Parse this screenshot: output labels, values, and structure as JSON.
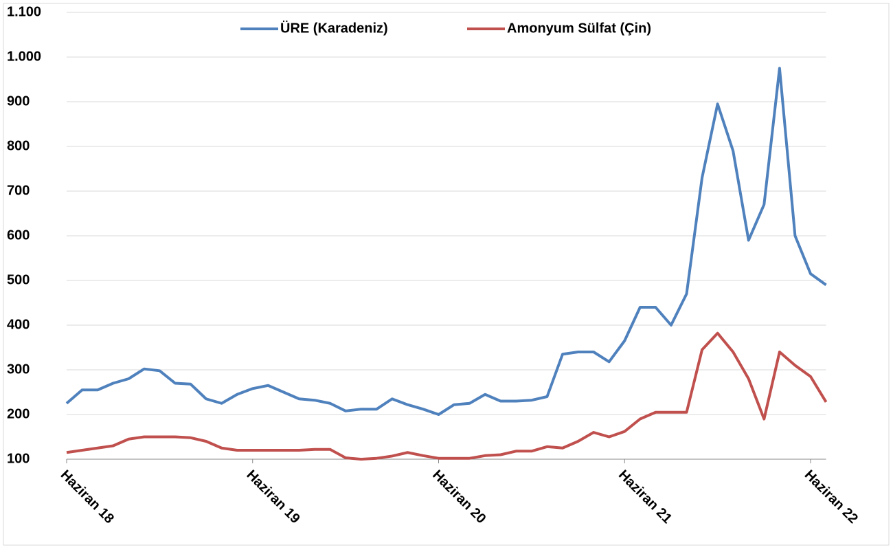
{
  "chart_data": {
    "type": "line",
    "categories": [
      "Haziran 18",
      null,
      null,
      null,
      null,
      null,
      null,
      null,
      null,
      null,
      null,
      null,
      "Haziran 19",
      null,
      null,
      null,
      null,
      null,
      null,
      null,
      null,
      null,
      null,
      null,
      "Haziran 20",
      null,
      null,
      null,
      null,
      null,
      null,
      null,
      null,
      null,
      null,
      null,
      "Haziran 21",
      null,
      null,
      null,
      null,
      null,
      null,
      null,
      null,
      null,
      null,
      null,
      "Haziran 22",
      null
    ],
    "series": [
      {
        "name": "ÜRE (Karadeniz)",
        "color": "#4f81bd",
        "values": [
          225,
          255,
          255,
          270,
          280,
          302,
          298,
          270,
          268,
          235,
          225,
          245,
          258,
          265,
          250,
          235,
          232,
          225,
          208,
          212,
          212,
          235,
          222,
          212,
          200,
          222,
          225,
          245,
          230,
          230,
          232,
          240,
          335,
          340,
          340,
          318,
          365,
          440,
          440,
          400,
          470,
          730,
          895,
          790,
          590,
          670,
          975,
          600,
          515,
          490
        ]
      },
      {
        "name": "Amonyum Sülfat (Çin)",
        "color": "#c0504d",
        "values": [
          115,
          120,
          125,
          130,
          145,
          150,
          150,
          150,
          148,
          140,
          125,
          120,
          120,
          120,
          120,
          120,
          122,
          122,
          103,
          100,
          102,
          107,
          115,
          108,
          102,
          102,
          102,
          108,
          110,
          118,
          118,
          128,
          125,
          140,
          160,
          150,
          162,
          190,
          205,
          205,
          205,
          345,
          382,
          340,
          280,
          190,
          340,
          310,
          285,
          228
        ]
      }
    ],
    "ylim": [
      100,
      1100
    ],
    "yticks": [
      100,
      200,
      300,
      400,
      500,
      600,
      700,
      800,
      900,
      {
        "value": 1000,
        "label": "1.000"
      },
      {
        "value": 1100,
        "label": "1.100"
      }
    ],
    "grid": true,
    "legend": "top"
  }
}
